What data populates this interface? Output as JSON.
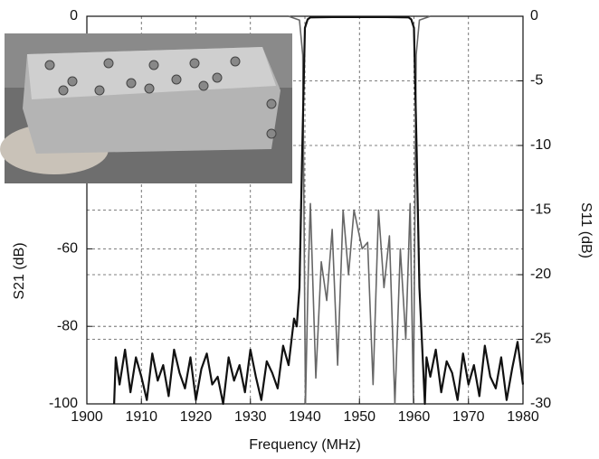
{
  "chart_data": {
    "type": "line",
    "x_label": "Frequency (MHz)",
    "y_label": "S21 (dB)",
    "y2_label": "S11 (dB)",
    "xlim": [
      1900,
      1980
    ],
    "xticks": [
      1900,
      1910,
      1920,
      1930,
      1940,
      1950,
      1960,
      1970,
      1980
    ],
    "ylim": [
      -100,
      0
    ],
    "yticks": [
      -100,
      -80,
      -60,
      0
    ],
    "y2lim": [
      -30,
      0
    ],
    "y2ticks": [
      -30,
      -25,
      -20,
      -15,
      -10,
      -5,
      0
    ],
    "grid": true,
    "series": [
      {
        "color": "#111111",
        "axis": "y",
        "x": [
          1905,
          1905.3,
          1906,
          1907,
          1908,
          1909,
          1910,
          1911,
          1912,
          1913,
          1914,
          1915,
          1916,
          1917,
          1918,
          1919,
          1920,
          1921,
          1922,
          1923,
          1924,
          1925,
          1926,
          1927,
          1928,
          1929,
          1930,
          1931,
          1932,
          1933,
          1934,
          1935,
          1936,
          1937,
          1937.5,
          1938,
          1938.5,
          1939,
          1939.5,
          1940,
          1940.5,
          1941,
          1945,
          1950,
          1955,
          1959,
          1959.5,
          1960,
          1960.5,
          1961,
          1961.5,
          1962,
          1962.3,
          1963,
          1964,
          1965,
          1966,
          1967,
          1968,
          1969,
          1970,
          1971,
          1972,
          1973,
          1974,
          1975,
          1976,
          1977,
          1978,
          1979,
          1980
        ],
        "values": [
          -100,
          -88,
          -95,
          -86,
          -97,
          -88,
          -93,
          -99,
          -87,
          -94,
          -90,
          -98,
          -86,
          -92,
          -96,
          -88,
          -99,
          -91,
          -87,
          -95,
          -93,
          -100,
          -88,
          -94,
          -90,
          -97,
          -86,
          -93,
          -99,
          -89,
          -92,
          -96,
          -85,
          -90,
          -84,
          -78,
          -80,
          -70,
          -35,
          -3,
          -0.8,
          -0.3,
          -0.2,
          -0.2,
          -0.2,
          -0.3,
          -0.8,
          -3,
          -35,
          -70,
          -85,
          -100,
          -88,
          -93,
          -86,
          -97,
          -89,
          -92,
          -99,
          -87,
          -95,
          -90,
          -98,
          -85,
          -93,
          -96,
          -88,
          -99,
          -91,
          -84,
          -95
        ]
      },
      {
        "color": "#666666",
        "axis": "y2",
        "x": [
          1937,
          1939,
          1939.6,
          1940.1,
          1940.6,
          1941,
          1942,
          1943,
          1944,
          1945,
          1946,
          1947,
          1948,
          1949,
          1950.5,
          1951.5,
          1952.5,
          1953.5,
          1954.5,
          1955.5,
          1956.5,
          1957.5,
          1958.5,
          1959.3,
          1959.9,
          1960.4,
          1961,
          1963
        ],
        "values": [
          0,
          -0.3,
          -3,
          -30,
          -20,
          -14.5,
          -28,
          -19,
          -22,
          -16.5,
          -27,
          -15,
          -20,
          -15,
          -18,
          -17.5,
          -28.5,
          -15,
          -21,
          -17,
          -30,
          -18,
          -25,
          -14.5,
          -30,
          -3,
          -0.3,
          0
        ]
      }
    ]
  }
}
